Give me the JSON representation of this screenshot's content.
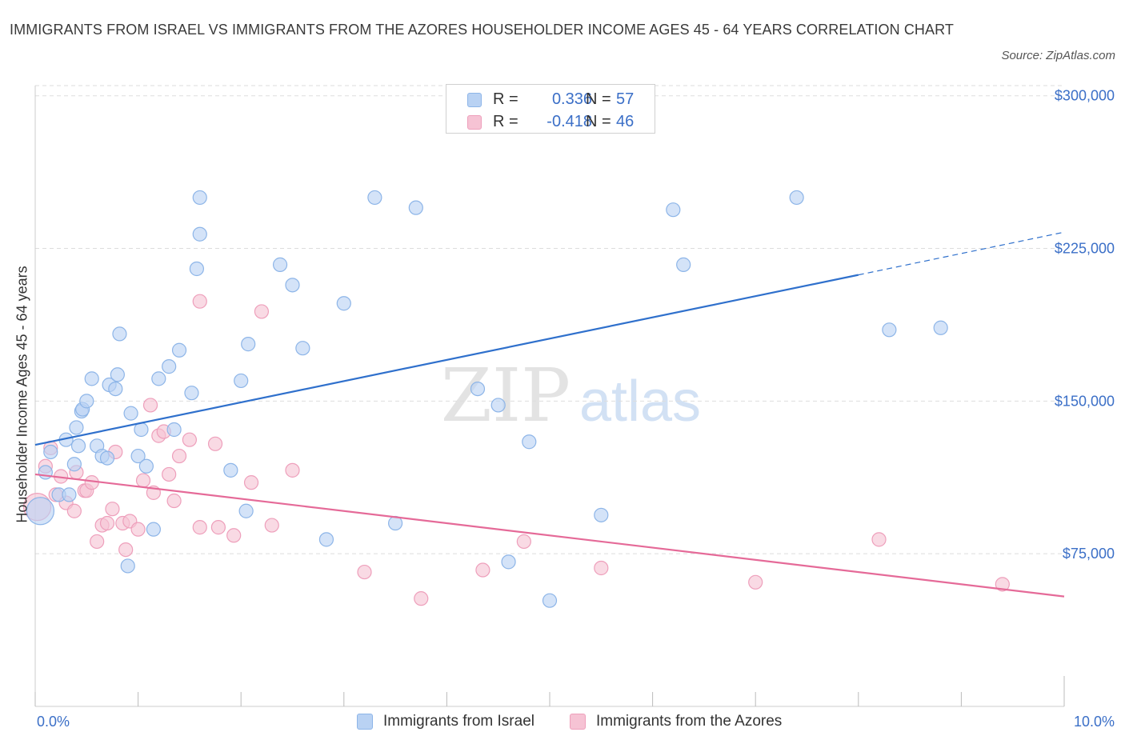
{
  "title": "IMMIGRANTS FROM ISRAEL VS IMMIGRANTS FROM THE AZORES HOUSEHOLDER INCOME AGES 45 - 64 YEARS CORRELATION CHART",
  "source": "Source: ZipAtlas.com",
  "watermark": {
    "zip": "ZIP",
    "atlas": "atlas"
  },
  "colors": {
    "blue_fill": "#b9d2f3",
    "blue_stroke": "#8db5e8",
    "blue_line": "#2f70cc",
    "pink_fill": "#f6c3d4",
    "pink_stroke": "#ee9fbb",
    "pink_line": "#e56a98",
    "axis_label": "#3b6fc7",
    "grid": "#dddddd"
  },
  "legend_top": [
    {
      "r_label": "R =",
      "r_value": "0.336",
      "n_label": "N =",
      "n_value": "57"
    },
    {
      "r_label": "R =",
      "r_value": "-0.418",
      "n_label": "N =",
      "n_value": "46"
    }
  ],
  "legend_bottom": [
    "Immigrants from Israel",
    "Immigrants from the Azores"
  ],
  "chart_data": {
    "type": "scatter",
    "title": "IMMIGRANTS FROM ISRAEL VS IMMIGRANTS FROM THE AZORES HOUSEHOLDER INCOME AGES 45 - 64 YEARS CORRELATION CHART",
    "xlabel": "",
    "ylabel": "Householder Income Ages 45 - 64 years",
    "xlim": [
      0,
      10
    ],
    "ylim": [
      0,
      305000
    ],
    "x_tick_labels": [
      "0.0%",
      "10.0%"
    ],
    "y_ticks": [
      75000,
      150000,
      225000,
      300000
    ],
    "y_tick_labels": [
      "$75,000",
      "$150,000",
      "$225,000",
      "$300,000"
    ],
    "grid": true,
    "series": [
      {
        "name": "Immigrants from Israel",
        "points": [
          [
            0.05,
            96000
          ],
          [
            0.1,
            115000
          ],
          [
            0.15,
            125000
          ],
          [
            0.23,
            104000
          ],
          [
            0.3,
            131000
          ],
          [
            0.33,
            104000
          ],
          [
            0.38,
            119000
          ],
          [
            0.42,
            128000
          ],
          [
            0.4,
            137000
          ],
          [
            0.45,
            145000
          ],
          [
            0.46,
            146000
          ],
          [
            0.5,
            150000
          ],
          [
            0.55,
            161000
          ],
          [
            0.6,
            128000
          ],
          [
            0.65,
            123000
          ],
          [
            0.7,
            122000
          ],
          [
            0.72,
            158000
          ],
          [
            0.78,
            156000
          ],
          [
            0.8,
            163000
          ],
          [
            0.82,
            183000
          ],
          [
            0.9,
            69000
          ],
          [
            0.93,
            144000
          ],
          [
            1.0,
            123000
          ],
          [
            1.03,
            136000
          ],
          [
            1.08,
            118000
          ],
          [
            1.15,
            87000
          ],
          [
            1.6,
            250000
          ],
          [
            1.2,
            161000
          ],
          [
            1.3,
            167000
          ],
          [
            1.35,
            136000
          ],
          [
            1.4,
            175000
          ],
          [
            1.52,
            154000
          ],
          [
            1.57,
            215000
          ],
          [
            1.6,
            232000
          ],
          [
            1.9,
            116000
          ],
          [
            2.0,
            160000
          ],
          [
            2.05,
            96000
          ],
          [
            2.07,
            178000
          ],
          [
            2.38,
            217000
          ],
          [
            2.5,
            207000
          ],
          [
            2.6,
            176000
          ],
          [
            2.83,
            82000
          ],
          [
            3.0,
            198000
          ],
          [
            3.3,
            250000
          ],
          [
            3.5,
            90000
          ],
          [
            3.7,
            245000
          ],
          [
            4.3,
            156000
          ],
          [
            4.5,
            148000
          ],
          [
            4.6,
            71000
          ],
          [
            4.8,
            130000
          ],
          [
            5.0,
            52000
          ],
          [
            5.5,
            94000
          ],
          [
            6.2,
            244000
          ],
          [
            6.3,
            217000
          ],
          [
            7.4,
            250000
          ],
          [
            8.3,
            185000
          ],
          [
            8.8,
            186000
          ]
        ],
        "trend": {
          "x": [
            0.0,
            8.0,
            10.0
          ],
          "y": [
            128500,
            212000,
            233000
          ]
        }
      },
      {
        "name": "Immigrants from the Azores",
        "points": [
          [
            0.02,
            98000
          ],
          [
            0.1,
            118000
          ],
          [
            0.15,
            127000
          ],
          [
            0.2,
            104000
          ],
          [
            0.25,
            113000
          ],
          [
            0.3,
            100000
          ],
          [
            0.38,
            96000
          ],
          [
            0.4,
            115000
          ],
          [
            0.48,
            106000
          ],
          [
            0.5,
            106000
          ],
          [
            0.55,
            110000
          ],
          [
            0.6,
            81000
          ],
          [
            0.65,
            89000
          ],
          [
            0.7,
            90000
          ],
          [
            0.75,
            97000
          ],
          [
            0.78,
            125000
          ],
          [
            0.85,
            90000
          ],
          [
            0.88,
            77000
          ],
          [
            0.92,
            91000
          ],
          [
            1.0,
            87000
          ],
          [
            1.05,
            111000
          ],
          [
            1.12,
            148000
          ],
          [
            1.15,
            105000
          ],
          [
            1.2,
            133000
          ],
          [
            1.25,
            135000
          ],
          [
            1.3,
            114000
          ],
          [
            1.35,
            101000
          ],
          [
            1.4,
            123000
          ],
          [
            1.5,
            131000
          ],
          [
            1.6,
            199000
          ],
          [
            1.6,
            88000
          ],
          [
            1.75,
            129000
          ],
          [
            1.78,
            88000
          ],
          [
            1.93,
            84000
          ],
          [
            2.1,
            110000
          ],
          [
            2.2,
            194000
          ],
          [
            2.3,
            89000
          ],
          [
            2.5,
            116000
          ],
          [
            3.2,
            66000
          ],
          [
            3.75,
            53000
          ],
          [
            4.35,
            67000
          ],
          [
            4.75,
            81000
          ],
          [
            5.5,
            68000
          ],
          [
            7.0,
            61000
          ],
          [
            8.2,
            82000
          ],
          [
            9.4,
            60000
          ]
        ],
        "trend": {
          "x": [
            0.0,
            10.0
          ],
          "y": [
            114000,
            54000
          ]
        }
      }
    ]
  }
}
